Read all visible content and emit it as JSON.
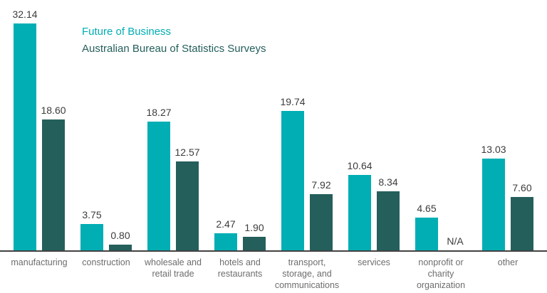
{
  "chart_data": {
    "type": "bar",
    "title": "",
    "categories": [
      "manufacturing",
      "construction",
      "wholesale and retail trade",
      "hotels and restaurants",
      "transport, storage, and communications",
      "services",
      "nonprofit or charity organization",
      "other"
    ],
    "series": [
      {
        "name": "Future of Business",
        "color": "#00aeb4",
        "values": [
          32.14,
          3.75,
          18.27,
          2.47,
          19.74,
          10.64,
          4.65,
          13.03
        ]
      },
      {
        "name": "Australian Bureau of Statistics Surveys",
        "color": "#245f5c",
        "values": [
          18.6,
          0.8,
          12.57,
          1.9,
          7.92,
          8.34,
          null,
          7.6
        ]
      }
    ],
    "null_label": "N/A",
    "value_label_decimals": 2,
    "ylim": [
      0,
      35.5
    ],
    "grid": false,
    "legend_position": "top-left-inside",
    "xlabel": "",
    "ylabel": ""
  },
  "colors": {
    "series_1": "#00aeb4",
    "series_2": "#245f5c",
    "value_label": "#3b3b3b",
    "category_label": "#6d6d6d",
    "axis_line": "#424242",
    "background": "#ffffff"
  }
}
